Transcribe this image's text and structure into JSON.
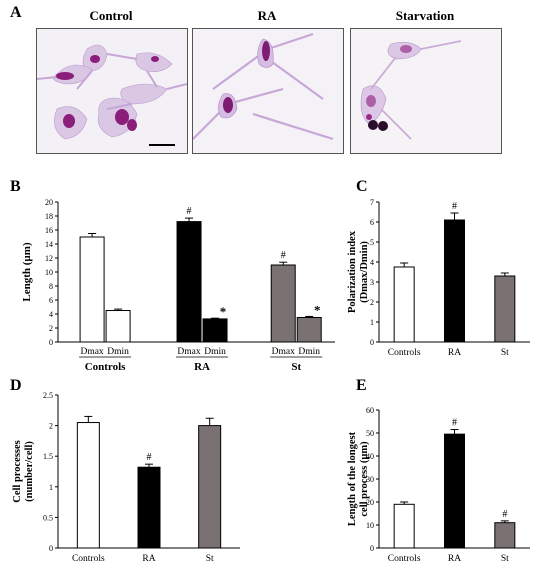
{
  "figure": {
    "panels": {
      "A": "A",
      "B": "B",
      "C": "C",
      "D": "D",
      "E": "E"
    },
    "micrograph_titles": [
      "Control",
      "RA",
      "Starvation"
    ]
  },
  "chart_data": [
    {
      "id": "B",
      "type": "bar",
      "ylabel": "Length (µm)",
      "ylim": [
        0,
        20
      ],
      "yticks": [
        0,
        2,
        4,
        6,
        8,
        10,
        12,
        14,
        16,
        18,
        20
      ],
      "groups": [
        "Controls",
        "RA",
        "St"
      ],
      "bar_labels": [
        "Dmax",
        "Dmin",
        "Dmax",
        "Dmin",
        "Dmax",
        "Dmin"
      ],
      "values": [
        15.0,
        4.5,
        17.2,
        3.3,
        11.0,
        3.5
      ],
      "errors": [
        0.5,
        0.2,
        0.5,
        0.1,
        0.4,
        0.15
      ],
      "colors": [
        "#ffffff",
        "#ffffff",
        "#000000",
        "#000000",
        "#7a7272",
        "#7a7272"
      ],
      "markers": [
        "",
        "",
        "#",
        "*",
        "#",
        "*"
      ]
    },
    {
      "id": "C",
      "type": "bar",
      "ylabel_lines": [
        "Polarization index",
        "(Dmax/Dmin)"
      ],
      "ylim": [
        0,
        7
      ],
      "yticks": [
        0,
        1,
        2,
        3,
        4,
        5,
        6,
        7
      ],
      "categories": [
        "Controls",
        "RA",
        "St"
      ],
      "values": [
        3.75,
        6.1,
        3.3
      ],
      "errors": [
        0.2,
        0.35,
        0.15
      ],
      "colors": [
        "#ffffff",
        "#000000",
        "#7a7272"
      ],
      "markers": [
        "",
        "#",
        ""
      ]
    },
    {
      "id": "D",
      "type": "bar",
      "ylabel_lines": [
        "Cell processes",
        "(number/cell)"
      ],
      "ylim": [
        0,
        2.5
      ],
      "yticks": [
        0,
        0.5,
        1,
        1.5,
        2,
        2.5
      ],
      "categories": [
        "Controls",
        "RA",
        "St"
      ],
      "values": [
        2.05,
        1.32,
        2.0
      ],
      "errors": [
        0.1,
        0.05,
        0.12
      ],
      "colors": [
        "#ffffff",
        "#000000",
        "#7a7272"
      ],
      "markers": [
        "",
        "#",
        ""
      ]
    },
    {
      "id": "E",
      "type": "bar",
      "ylabel_lines": [
        "Length of the longest",
        "cell process (µm)"
      ],
      "ylim": [
        0,
        60
      ],
      "yticks": [
        0,
        10,
        20,
        30,
        40,
        50,
        60
      ],
      "categories": [
        "Controls",
        "RA",
        "St"
      ],
      "values": [
        19.0,
        49.5,
        11.0
      ],
      "errors": [
        1.0,
        2.0,
        0.8
      ],
      "colors": [
        "#ffffff",
        "#000000",
        "#7a7272"
      ],
      "markers": [
        "",
        "#",
        "#"
      ]
    }
  ]
}
